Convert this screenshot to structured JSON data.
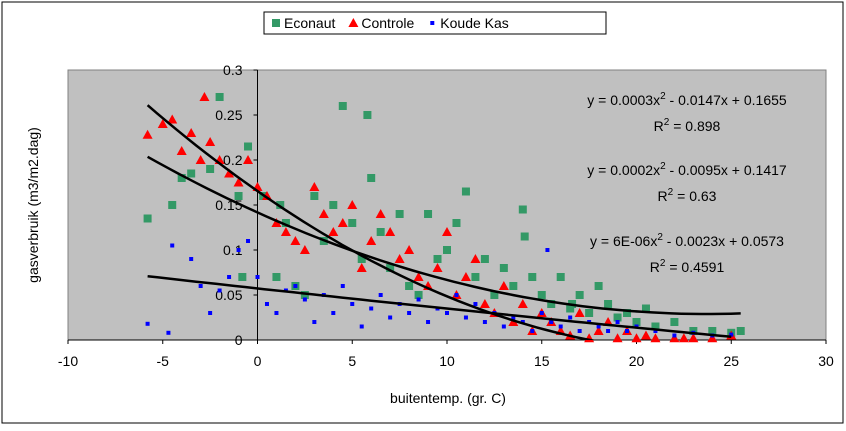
{
  "chart_data": {
    "type": "scatter",
    "xlabel": "buitentemp. (gr. C)",
    "ylabel": "gasverbruik (m3/m2.dag)",
    "xlim": [
      -10,
      30
    ],
    "ylim": [
      0,
      0.3
    ],
    "xticks": [
      -10,
      -5,
      0,
      5,
      10,
      15,
      20,
      25,
      30
    ],
    "yticks": [
      0,
      0.05,
      0.1,
      0.15,
      0.2,
      0.25,
      0.3
    ],
    "legend": "top",
    "series": [
      {
        "name": "Econaut",
        "color": "#339966",
        "marker": "square",
        "x": [
          -5.8,
          -4.5,
          -4,
          -3.5,
          -2,
          -2.5,
          -1,
          -0.5,
          -0.8,
          0.3,
          1,
          1.2,
          1.5,
          2,
          2.5,
          3,
          3.5,
          4,
          4.5,
          5,
          5.5,
          5.8,
          6,
          6.5,
          7,
          7.5,
          8,
          8.5,
          9,
          9.5,
          10,
          10.5,
          11,
          11.5,
          12,
          12.5,
          13,
          13.5,
          14,
          14.5,
          15,
          15.5,
          16,
          16.5,
          17,
          17.5,
          18,
          18.5,
          19,
          19.5,
          20,
          20.5,
          21,
          22,
          23,
          24,
          25,
          25.5,
          14.1,
          16.6
        ],
        "values": [
          0.135,
          0.15,
          0.18,
          0.185,
          0.27,
          0.19,
          0.16,
          0.215,
          0.07,
          0.16,
          0.07,
          0.15,
          0.13,
          0.06,
          0.05,
          0.16,
          0.11,
          0.15,
          0.26,
          0.13,
          0.09,
          0.25,
          0.18,
          0.12,
          0.08,
          0.14,
          0.06,
          0.05,
          0.14,
          0.09,
          0.1,
          0.13,
          0.165,
          0.07,
          0.09,
          0.05,
          0.08,
          0.06,
          0.145,
          0.07,
          0.05,
          0.04,
          0.07,
          0.035,
          0.05,
          0.03,
          0.06,
          0.04,
          0.025,
          0.03,
          0.02,
          0.035,
          0.015,
          0.02,
          0.01,
          0.01,
          0.008,
          0.01,
          0.115,
          0.04
        ]
      },
      {
        "name": "Controle",
        "color": "#ff0000",
        "marker": "triangle",
        "x": [
          -5.8,
          -5,
          -4.5,
          -4,
          -3.5,
          -3,
          -2.8,
          -2.5,
          -2,
          -1.5,
          -1,
          -0.5,
          0,
          0.5,
          1,
          1.5,
          2,
          2.5,
          3,
          3.5,
          4,
          4.5,
          5,
          5.5,
          6,
          6.5,
          7,
          7.5,
          8,
          8.5,
          9,
          9.5,
          10,
          10.5,
          11,
          11.5,
          12,
          12.5,
          13,
          13.5,
          14,
          14.5,
          15,
          15.5,
          16,
          16.5,
          17,
          17.5,
          18,
          18.5,
          19,
          19.5,
          20,
          20.5,
          21,
          22,
          22.5,
          23,
          24,
          25
        ],
        "values": [
          0.228,
          0.24,
          0.245,
          0.21,
          0.23,
          0.2,
          0.27,
          0.22,
          0.2,
          0.185,
          0.175,
          0.2,
          0.17,
          0.16,
          0.13,
          0.12,
          0.11,
          0.1,
          0.17,
          0.14,
          0.12,
          0.13,
          0.15,
          0.08,
          0.11,
          0.14,
          0.12,
          0.09,
          0.1,
          0.07,
          0.06,
          0.08,
          0.12,
          0.05,
          0.07,
          0.09,
          0.04,
          0.03,
          0.06,
          0.02,
          0.04,
          0.01,
          0.03,
          0.02,
          0.01,
          0.005,
          0.03,
          0.002,
          0.01,
          0.02,
          0.002,
          0.01,
          0.002,
          0.005,
          0.002,
          0.002,
          0.002,
          0.002,
          0.002,
          0.005
        ]
      },
      {
        "name": "Koude Kas",
        "color": "#0000ff",
        "marker": "small-square",
        "x": [
          -5.8,
          -4.7,
          -4.5,
          -3.5,
          -3,
          -2.5,
          -2,
          -1.5,
          -1,
          -0.5,
          0,
          0.5,
          1,
          1.5,
          2,
          2.5,
          3,
          3.5,
          4,
          4.5,
          5,
          5.5,
          6,
          6.5,
          7,
          7.5,
          8,
          8.5,
          9,
          9.5,
          10,
          10.5,
          11,
          11.5,
          12,
          12.5,
          13,
          13.5,
          14,
          14.5,
          15,
          15.5,
          16,
          16.5,
          17,
          17.5,
          18,
          18.5,
          19,
          19.5,
          20,
          21,
          22,
          23,
          24,
          25,
          15.3
        ],
        "values": [
          0.018,
          0.008,
          0.105,
          0.09,
          0.06,
          0.03,
          0.055,
          0.07,
          0.1,
          0.11,
          0.07,
          0.04,
          0.03,
          0.055,
          0.06,
          0.045,
          0.02,
          0.05,
          0.03,
          0.06,
          0.04,
          0.015,
          0.035,
          0.05,
          0.025,
          0.04,
          0.03,
          0.045,
          0.02,
          0.035,
          0.03,
          0.05,
          0.025,
          0.04,
          0.02,
          0.03,
          0.015,
          0.025,
          0.02,
          0.01,
          0.03,
          0.02,
          0.015,
          0.025,
          0.01,
          0.02,
          0.015,
          0.01,
          0.02,
          0.01,
          0.015,
          0.01,
          0.005,
          0.008,
          0.005,
          0.006,
          0.1
        ]
      }
    ],
    "trendlines": [
      {
        "series": 1,
        "coefficients": [
          0.0003,
          -0.0147,
          0.1655
        ],
        "equation": [
          "y = 0.0003x",
          "2",
          " - 0.0147x + 0.1655"
        ],
        "r2": [
          "R",
          "2",
          " = 0.898"
        ]
      },
      {
        "series": 0,
        "coefficients": [
          0.0002,
          -0.0095,
          0.1417
        ],
        "equation": [
          "y = 0.0002x",
          "2",
          " - 0.0095x + 0.1417"
        ],
        "r2": [
          "R",
          "2",
          " = 0.63"
        ]
      },
      {
        "series": 2,
        "coefficients": [
          6e-06,
          -0.0023,
          0.0573
        ],
        "equation": [
          "y = 6E-06x",
          "2",
          " - 0.0023x + 0.0573"
        ],
        "r2": [
          "R",
          "2",
          " = 0.4591"
        ]
      }
    ]
  }
}
